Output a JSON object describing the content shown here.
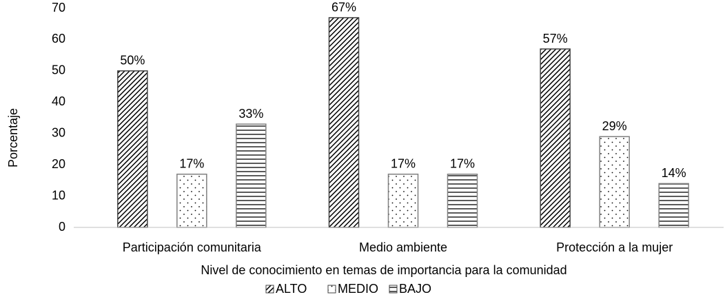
{
  "chart_data": {
    "type": "bar",
    "categories": [
      "Participación comunitaria",
      "Medio ambiente",
      "Protección a la mujer"
    ],
    "series": [
      {
        "name": "ALTO",
        "color": "#000000",
        "pattern": "diagonal",
        "values": [
          50,
          67,
          57
        ],
        "value_labels": [
          "50%",
          "67%",
          "57%"
        ]
      },
      {
        "name": "MEDIO",
        "color": "#000000",
        "pattern": "dots",
        "values": [
          17,
          17,
          29
        ],
        "value_labels": [
          "17%",
          "17%",
          "29%"
        ]
      },
      {
        "name": "BAJO",
        "color": "#000000",
        "pattern": "horizontal",
        "values": [
          33,
          17,
          14
        ],
        "value_labels": [
          "33%",
          "17%",
          "14%"
        ]
      }
    ],
    "xlabel": "Nivel de conocimiento en temas de importancia para la comunidad",
    "ylabel": "Porcentaje",
    "ylim": [
      0,
      70
    ],
    "yticks": [
      0,
      10,
      20,
      30,
      40,
      50,
      60,
      70
    ],
    "grid": false,
    "legend": "bottom"
  }
}
